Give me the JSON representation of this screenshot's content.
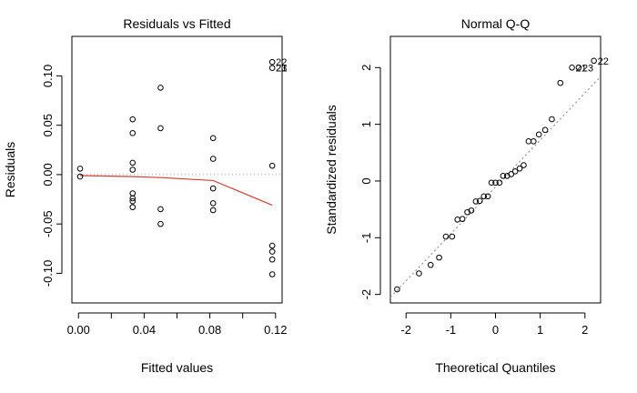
{
  "chart_data": [
    {
      "type": "scatter",
      "title": "Residuals vs Fitted",
      "xlabel": "Fitted values",
      "ylabel": "Residuals",
      "xlim": [
        -0.004,
        0.124
      ],
      "ylim": [
        -0.13,
        0.14
      ],
      "xticks": [
        0.0,
        0.02,
        0.04,
        0.06,
        0.08,
        0.1,
        0.12
      ],
      "xtick_labels": [
        "0.00",
        "",
        "0.04",
        "",
        "0.08",
        "",
        "0.12"
      ],
      "yticks": [
        -0.1,
        -0.05,
        0.0,
        0.05,
        0.1
      ],
      "ytick_labels": [
        "-0.10",
        "-0.05",
        "0.00",
        "0.05",
        "0.10"
      ],
      "reference_line": {
        "y": 0,
        "style": "dotted",
        "color": "#a0a0a0"
      },
      "smooth_line": {
        "color": "#d0403a",
        "x": [
          0.001,
          0.033,
          0.05,
          0.082,
          0.118
        ],
        "y": [
          -0.001,
          -0.002,
          -0.003,
          -0.006,
          -0.031
        ]
      },
      "points": [
        {
          "x": 0.001,
          "y": 0.006
        },
        {
          "x": 0.001,
          "y": -0.002
        },
        {
          "x": 0.033,
          "y": 0.056
        },
        {
          "x": 0.033,
          "y": 0.042
        },
        {
          "x": 0.033,
          "y": 0.012
        },
        {
          "x": 0.033,
          "y": 0.005
        },
        {
          "x": 0.033,
          "y": -0.019
        },
        {
          "x": 0.033,
          "y": -0.024
        },
        {
          "x": 0.033,
          "y": -0.027
        },
        {
          "x": 0.033,
          "y": -0.033
        },
        {
          "x": 0.05,
          "y": 0.088
        },
        {
          "x": 0.05,
          "y": 0.047
        },
        {
          "x": 0.05,
          "y": -0.035
        },
        {
          "x": 0.05,
          "y": -0.05
        },
        {
          "x": 0.082,
          "y": 0.037
        },
        {
          "x": 0.082,
          "y": 0.016
        },
        {
          "x": 0.082,
          "y": -0.014
        },
        {
          "x": 0.082,
          "y": -0.029
        },
        {
          "x": 0.082,
          "y": -0.036
        },
        {
          "x": 0.118,
          "y": 0.114
        },
        {
          "x": 0.118,
          "y": 0.108
        },
        {
          "x": 0.118,
          "y": 0.009
        },
        {
          "x": 0.118,
          "y": -0.072
        },
        {
          "x": 0.118,
          "y": -0.078
        },
        {
          "x": 0.118,
          "y": -0.086
        },
        {
          "x": 0.118,
          "y": -0.101
        }
      ],
      "point_labels": [
        {
          "text": "22",
          "x": 0.118,
          "y": 0.114
        },
        {
          "text": "21",
          "x": 0.118,
          "y": 0.108
        },
        {
          "text": "23",
          "x": 0.118,
          "y": 0.108
        }
      ]
    },
    {
      "type": "scatter",
      "title": "Normal Q-Q",
      "xlabel": "Theoretical Quantiles",
      "ylabel": "Standardized residuals",
      "xlim": [
        -2.35,
        2.35
      ],
      "ylim": [
        -2.15,
        2.55
      ],
      "xticks": [
        -2,
        -1,
        0,
        1,
        2
      ],
      "xtick_labels": [
        "-2",
        "-1",
        "0",
        "1",
        "2"
      ],
      "yticks": [
        -2,
        -1,
        0,
        1,
        2
      ],
      "ytick_labels": [
        "-2",
        "-1",
        "0",
        "1",
        "2"
      ],
      "reference_line": {
        "style": "dashed",
        "color": "#808080",
        "x": [
          -2.35,
          2.35
        ],
        "y": [
          -2.05,
          1.84
        ]
      },
      "points": [
        {
          "x": -2.2,
          "y": -1.91
        },
        {
          "x": -1.71,
          "y": -1.63
        },
        {
          "x": -1.45,
          "y": -1.48
        },
        {
          "x": -1.26,
          "y": -1.35
        },
        {
          "x": -1.11,
          "y": -0.98
        },
        {
          "x": -0.97,
          "y": -0.98
        },
        {
          "x": -0.85,
          "y": -0.68
        },
        {
          "x": -0.74,
          "y": -0.67
        },
        {
          "x": -0.63,
          "y": -0.55
        },
        {
          "x": -0.54,
          "y": -0.52
        },
        {
          "x": -0.44,
          "y": -0.36
        },
        {
          "x": -0.35,
          "y": -0.35
        },
        {
          "x": -0.26,
          "y": -0.27
        },
        {
          "x": -0.17,
          "y": -0.27
        },
        {
          "x": -0.09,
          "y": -0.03
        },
        {
          "x": 0.0,
          "y": -0.03
        },
        {
          "x": 0.09,
          "y": -0.03
        },
        {
          "x": 0.17,
          "y": 0.09
        },
        {
          "x": 0.26,
          "y": 0.09
        },
        {
          "x": 0.35,
          "y": 0.12
        },
        {
          "x": 0.44,
          "y": 0.17
        },
        {
          "x": 0.54,
          "y": 0.22
        },
        {
          "x": 0.63,
          "y": 0.28
        },
        {
          "x": 0.74,
          "y": 0.7
        },
        {
          "x": 0.85,
          "y": 0.7
        },
        {
          "x": 0.97,
          "y": 0.82
        },
        {
          "x": 1.11,
          "y": 0.9
        },
        {
          "x": 1.26,
          "y": 1.09
        },
        {
          "x": 1.45,
          "y": 1.73
        },
        {
          "x": 1.71,
          "y": 2.0
        },
        {
          "x": 1.86,
          "y": 2.0
        },
        {
          "x": 2.2,
          "y": 2.12
        }
      ],
      "point_labels": [
        {
          "text": "22",
          "x": 2.2,
          "y": 2.12
        },
        {
          "text": "21",
          "x": 1.71,
          "y": 2.0
        },
        {
          "text": "23",
          "x": 1.86,
          "y": 2.0
        }
      ]
    }
  ]
}
